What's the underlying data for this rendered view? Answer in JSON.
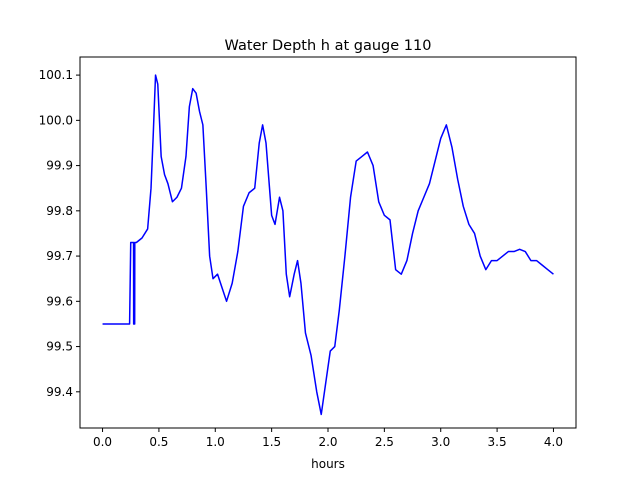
{
  "chart_data": {
    "type": "line",
    "title": "Water Depth h at gauge 110",
    "xlabel": "hours",
    "ylabel": "",
    "xlim": [
      -0.2,
      4.2
    ],
    "ylim": [
      99.32,
      100.14
    ],
    "xticks": [
      0.0,
      0.5,
      1.0,
      1.5,
      2.0,
      2.5,
      3.0,
      3.5,
      4.0
    ],
    "xtick_labels": [
      "0.0",
      "0.5",
      "1.0",
      "1.5",
      "2.0",
      "2.5",
      "3.0",
      "3.5",
      "4.0"
    ],
    "yticks": [
      99.4,
      99.5,
      99.6,
      99.7,
      99.8,
      99.9,
      100.0,
      100.1
    ],
    "ytick_labels": [
      "99.4",
      "99.5",
      "99.6",
      "99.7",
      "99.8",
      "99.9",
      "100.0",
      "100.1"
    ],
    "grid": false,
    "legend": "none",
    "series": [
      {
        "color": "#0000ff",
        "points": [
          [
            0.0,
            99.55
          ],
          [
            0.1,
            99.55
          ],
          [
            0.2,
            99.55
          ],
          [
            0.24,
            99.55
          ],
          [
            0.25,
            99.73
          ],
          [
            0.275,
            99.73
          ],
          [
            0.276,
            99.55
          ],
          [
            0.285,
            99.55
          ],
          [
            0.286,
            99.73
          ],
          [
            0.3,
            99.73
          ],
          [
            0.35,
            99.74
          ],
          [
            0.4,
            99.76
          ],
          [
            0.43,
            99.85
          ],
          [
            0.45,
            99.97
          ],
          [
            0.47,
            100.1
          ],
          [
            0.49,
            100.08
          ],
          [
            0.52,
            99.92
          ],
          [
            0.55,
            99.88
          ],
          [
            0.58,
            99.86
          ],
          [
            0.62,
            99.82
          ],
          [
            0.66,
            99.83
          ],
          [
            0.7,
            99.85
          ],
          [
            0.74,
            99.92
          ],
          [
            0.77,
            100.03
          ],
          [
            0.8,
            100.07
          ],
          [
            0.83,
            100.06
          ],
          [
            0.86,
            100.02
          ],
          [
            0.89,
            99.99
          ],
          [
            0.92,
            99.85
          ],
          [
            0.95,
            99.7
          ],
          [
            0.98,
            99.65
          ],
          [
            1.02,
            99.66
          ],
          [
            1.06,
            99.63
          ],
          [
            1.1,
            99.6
          ],
          [
            1.15,
            99.64
          ],
          [
            1.2,
            99.71
          ],
          [
            1.25,
            99.81
          ],
          [
            1.3,
            99.84
          ],
          [
            1.35,
            99.85
          ],
          [
            1.39,
            99.95
          ],
          [
            1.42,
            99.99
          ],
          [
            1.45,
            99.95
          ],
          [
            1.5,
            99.79
          ],
          [
            1.53,
            99.77
          ],
          [
            1.57,
            99.83
          ],
          [
            1.6,
            99.8
          ],
          [
            1.63,
            99.66
          ],
          [
            1.66,
            99.61
          ],
          [
            1.7,
            99.66
          ],
          [
            1.73,
            99.69
          ],
          [
            1.76,
            99.64
          ],
          [
            1.8,
            99.53
          ],
          [
            1.85,
            99.48
          ],
          [
            1.9,
            99.4
          ],
          [
            1.94,
            99.35
          ],
          [
            1.98,
            99.42
          ],
          [
            2.02,
            99.49
          ],
          [
            2.06,
            99.5
          ],
          [
            2.1,
            99.58
          ],
          [
            2.15,
            99.7
          ],
          [
            2.2,
            99.83
          ],
          [
            2.25,
            99.91
          ],
          [
            2.3,
            99.92
          ],
          [
            2.35,
            99.93
          ],
          [
            2.4,
            99.9
          ],
          [
            2.45,
            99.82
          ],
          [
            2.5,
            99.79
          ],
          [
            2.55,
            99.78
          ],
          [
            2.6,
            99.67
          ],
          [
            2.65,
            99.66
          ],
          [
            2.7,
            99.69
          ],
          [
            2.75,
            99.75
          ],
          [
            2.8,
            99.8
          ],
          [
            2.85,
            99.83
          ],
          [
            2.9,
            99.86
          ],
          [
            2.95,
            99.91
          ],
          [
            3.0,
            99.96
          ],
          [
            3.05,
            99.99
          ],
          [
            3.1,
            99.94
          ],
          [
            3.15,
            99.87
          ],
          [
            3.2,
            99.81
          ],
          [
            3.25,
            99.77
          ],
          [
            3.3,
            99.75
          ],
          [
            3.35,
            99.7
          ],
          [
            3.4,
            99.67
          ],
          [
            3.45,
            99.69
          ],
          [
            3.5,
            99.69
          ],
          [
            3.55,
            99.7
          ],
          [
            3.6,
            99.71
          ],
          [
            3.65,
            99.71
          ],
          [
            3.7,
            99.715
          ],
          [
            3.75,
            99.71
          ],
          [
            3.8,
            99.69
          ],
          [
            3.85,
            99.69
          ],
          [
            3.9,
            99.68
          ],
          [
            3.95,
            99.67
          ],
          [
            4.0,
            99.66
          ]
        ]
      }
    ]
  }
}
